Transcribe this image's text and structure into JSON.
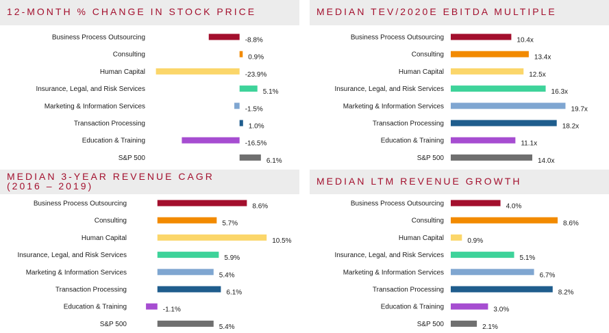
{
  "colors": {
    "title": "#a30f2d",
    "title_bg": "#ececec",
    "series": [
      "#a30f2d",
      "#f28a00",
      "#fbd66a",
      "#3ed39a",
      "#7fa6d1",
      "#1f5d8d",
      "#a64dd1",
      "#6f6f6f"
    ]
  },
  "chart_data": [
    {
      "type": "bar",
      "orientation": "horizontal",
      "title_lines": [
        "12-MONTH % CHANGE IN STOCK PRICE"
      ],
      "categories": [
        "Business Process Outsourcing",
        "Consulting",
        "Human Capital",
        "Insurance, Legal, and Risk Services",
        "Marketing & Information Services",
        "Transaction Processing",
        "Education & Training",
        "S&P 500"
      ],
      "values": [
        -8.8,
        0.9,
        -23.9,
        5.1,
        -1.5,
        1.0,
        -16.5,
        6.1
      ],
      "labels": [
        "-8.8%",
        "0.9%",
        "-23.9%",
        "5.1%",
        "-1.5%",
        "1.0%",
        "-16.5%",
        "6.1%"
      ],
      "xlim": [
        -25,
        12
      ]
    },
    {
      "type": "bar",
      "orientation": "horizontal",
      "title_lines": [
        "MEDIAN TEV/2020E EBITDA MULTIPLE"
      ],
      "categories": [
        "Business Process Outsourcing",
        "Consulting",
        "Human Capital",
        "Insurance, Legal, and Risk Services",
        "Marketing & Information Services",
        "Transaction Processing",
        "Education & Training",
        "S&P 500"
      ],
      "values": [
        10.4,
        13.4,
        12.5,
        16.3,
        19.7,
        18.2,
        11.1,
        14.0
      ],
      "labels": [
        "10.4x",
        "13.4x",
        "12.5x",
        "16.3x",
        "19.7x",
        "18.2x",
        "11.1x",
        "14.0x"
      ],
      "xlim": [
        0,
        22
      ]
    },
    {
      "type": "bar",
      "orientation": "horizontal",
      "title_lines": [
        "MEDIAN 3-YEAR REVENUE CAGR",
        "(2016 – 2019)"
      ],
      "categories": [
        "Business Process Outsourcing",
        "Consulting",
        "Human Capital",
        "Insurance, Legal, and Risk Services",
        "Marketing & Information Services",
        "Transaction Processing",
        "Education & Training",
        "S&P 500"
      ],
      "values": [
        8.6,
        5.7,
        10.5,
        5.9,
        5.4,
        6.1,
        -1.1,
        5.4
      ],
      "labels": [
        "8.6%",
        "5.7%",
        "10.5%",
        "5.9%",
        "5.4%",
        "6.1%",
        "-1.1%",
        "5.4%"
      ],
      "xlim": [
        -1.5,
        12
      ]
    },
    {
      "type": "bar",
      "orientation": "horizontal",
      "title_lines": [
        "MEDIAN LTM REVENUE GROWTH"
      ],
      "categories": [
        "Business Process Outsourcing",
        "Consulting",
        "Human Capital",
        "Insurance, Legal, and Risk Services",
        "Marketing & Information Services",
        "Transaction Processing",
        "Education & Training",
        "S&P 500"
      ],
      "values": [
        4.0,
        8.6,
        0.9,
        5.1,
        6.7,
        8.2,
        3.0,
        2.1
      ],
      "labels": [
        "4.0%",
        "8.6%",
        "0.9%",
        "5.1%",
        "6.7%",
        "8.2%",
        "3.0%",
        "2.1%"
      ],
      "xlim": [
        0,
        9.7
      ]
    }
  ]
}
